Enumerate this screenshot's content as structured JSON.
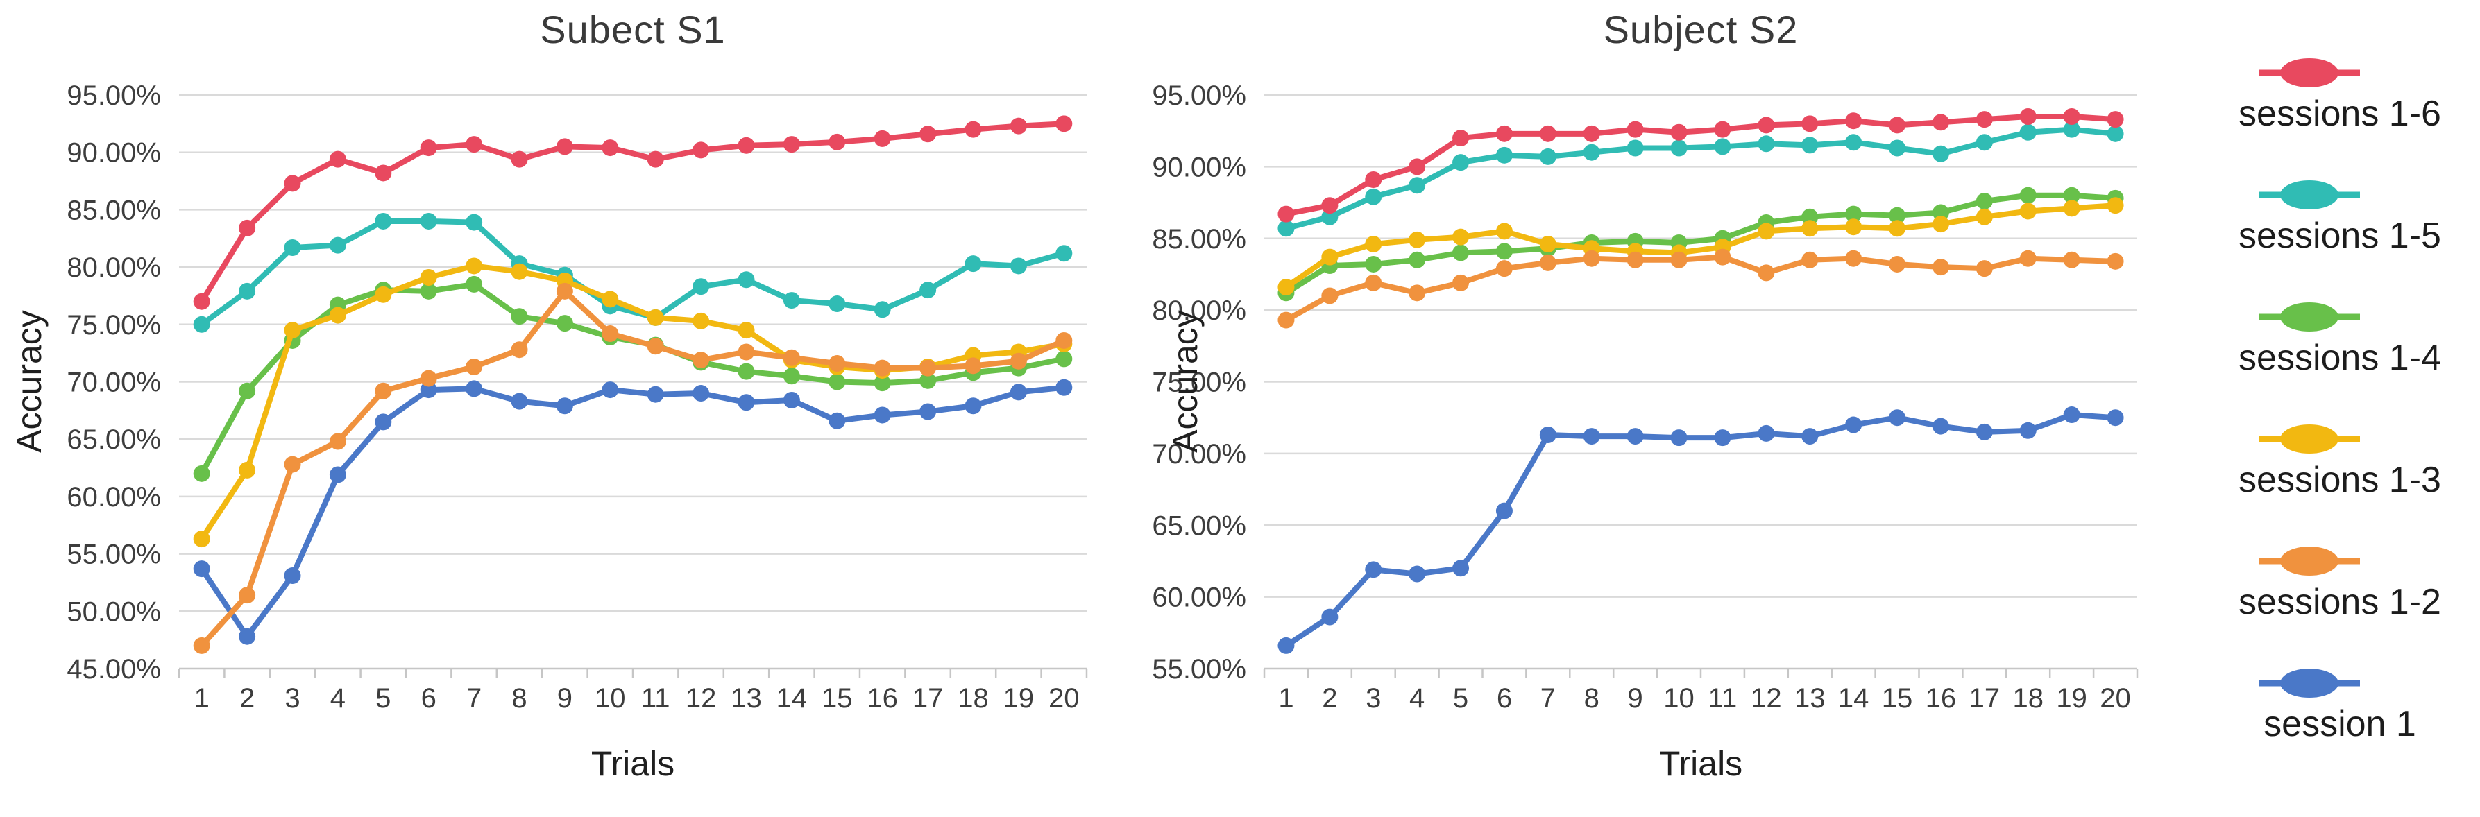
{
  "page": {
    "background": "#ffffff"
  },
  "chart_data": [
    {
      "id": "s1",
      "type": "line",
      "title": "Subect S1",
      "xlabel": "Trials",
      "ylabel": "Accuracy",
      "ylim": [
        45,
        95
      ],
      "ytick_step": 5,
      "ytick_suffix": "%",
      "grid": true,
      "x": [
        1,
        2,
        3,
        4,
        5,
        6,
        7,
        8,
        9,
        10,
        11,
        12,
        13,
        14,
        15,
        16,
        17,
        18,
        19,
        20
      ],
      "series": [
        {
          "name": "sessions 1-6",
          "color": "#e8495f",
          "values": [
            77.0,
            83.4,
            87.3,
            89.4,
            88.2,
            90.4,
            90.7,
            89.4,
            90.5,
            90.4,
            89.4,
            90.2,
            90.6,
            90.7,
            90.9,
            91.2,
            91.6,
            92.0,
            92.3,
            92.5
          ]
        },
        {
          "name": "sessions 1-5",
          "color": "#30bcb4",
          "values": [
            75.0,
            77.9,
            81.7,
            81.9,
            84.0,
            84.0,
            83.9,
            80.3,
            79.3,
            76.6,
            75.6,
            78.3,
            78.9,
            77.1,
            76.8,
            76.3,
            78.0,
            80.3,
            80.1,
            81.2
          ]
        },
        {
          "name": "sessions 1-4",
          "color": "#68c04a",
          "values": [
            62.0,
            69.2,
            73.6,
            76.7,
            78.0,
            77.9,
            78.5,
            75.7,
            75.1,
            73.9,
            73.2,
            71.7,
            70.9,
            70.5,
            70.0,
            69.9,
            70.1,
            70.8,
            71.2,
            72.0
          ]
        },
        {
          "name": "sessions 1-3",
          "color": "#f2b811",
          "values": [
            56.3,
            62.3,
            74.5,
            75.8,
            77.6,
            79.1,
            80.1,
            79.6,
            78.8,
            77.2,
            75.6,
            75.3,
            74.5,
            71.9,
            71.3,
            71.0,
            71.3,
            72.3,
            72.6,
            73.3
          ]
        },
        {
          "name": "sessions 1-2",
          "color": "#f0923e",
          "values": [
            47.0,
            51.4,
            62.8,
            64.8,
            69.2,
            70.3,
            71.3,
            72.8,
            77.9,
            74.2,
            73.1,
            71.9,
            72.6,
            72.1,
            71.6,
            71.2,
            71.2,
            71.4,
            71.8,
            73.6
          ]
        },
        {
          "name": "session 1",
          "color": "#4a78c8",
          "values": [
            53.7,
            47.8,
            53.1,
            61.9,
            66.5,
            69.3,
            69.4,
            68.3,
            67.9,
            69.3,
            68.9,
            69.0,
            68.2,
            68.4,
            66.6,
            67.1,
            67.4,
            67.9,
            69.1,
            69.5
          ]
        }
      ]
    },
    {
      "id": "s2",
      "type": "line",
      "title": "Subject S2",
      "xlabel": "Trials",
      "ylabel": "Accuracy",
      "ylim": [
        55,
        95
      ],
      "ytick_step": 5,
      "ytick_suffix": "%",
      "grid": true,
      "x": [
        1,
        2,
        3,
        4,
        5,
        6,
        7,
        8,
        9,
        10,
        11,
        12,
        13,
        14,
        15,
        16,
        17,
        18,
        19,
        20
      ],
      "series": [
        {
          "name": "sessions 1-6",
          "color": "#e8495f",
          "values": [
            86.7,
            87.3,
            89.1,
            90.0,
            92.0,
            92.3,
            92.3,
            92.3,
            92.6,
            92.4,
            92.6,
            92.9,
            93.0,
            93.2,
            92.9,
            93.1,
            93.3,
            93.5,
            93.5,
            93.3
          ]
        },
        {
          "name": "sessions 1-5",
          "color": "#30bcb4",
          "values": [
            85.7,
            86.5,
            87.9,
            88.7,
            90.3,
            90.8,
            90.7,
            91.0,
            91.3,
            91.3,
            91.4,
            91.6,
            91.5,
            91.7,
            91.3,
            90.9,
            91.7,
            92.4,
            92.6,
            92.3
          ]
        },
        {
          "name": "sessions 1-4",
          "color": "#68c04a",
          "values": [
            81.2,
            83.1,
            83.2,
            83.5,
            84.0,
            84.1,
            84.3,
            84.7,
            84.8,
            84.7,
            85.0,
            86.1,
            86.5,
            86.7,
            86.6,
            86.8,
            87.6,
            88.0,
            88.0,
            87.8
          ]
        },
        {
          "name": "sessions 1-3",
          "color": "#f2b811",
          "values": [
            81.6,
            83.7,
            84.6,
            84.9,
            85.1,
            85.5,
            84.6,
            84.3,
            84.1,
            84.0,
            84.4,
            85.5,
            85.7,
            85.8,
            85.7,
            86.0,
            86.5,
            86.9,
            87.1,
            87.3
          ]
        },
        {
          "name": "sessions 1-2",
          "color": "#f0923e",
          "values": [
            79.3,
            81.0,
            81.9,
            81.2,
            81.9,
            82.9,
            83.3,
            83.6,
            83.5,
            83.5,
            83.7,
            82.6,
            83.5,
            83.6,
            83.2,
            83.0,
            82.9,
            83.6,
            83.5,
            83.4
          ]
        },
        {
          "name": "session 1",
          "color": "#4a78c8",
          "values": [
            56.6,
            58.6,
            61.9,
            61.6,
            62.0,
            66.0,
            71.3,
            71.2,
            71.2,
            71.1,
            71.1,
            71.4,
            71.2,
            72.0,
            72.5,
            71.9,
            71.5,
            71.6,
            72.7,
            72.5
          ]
        }
      ]
    }
  ],
  "legend": {
    "position": "right",
    "items": [
      {
        "label": "sessions 1-6",
        "color": "#e8495f"
      },
      {
        "label": "sessions 1-5",
        "color": "#30bcb4"
      },
      {
        "label": "sessions 1-4",
        "color": "#68c04a"
      },
      {
        "label": "sessions 1-3",
        "color": "#f2b811"
      },
      {
        "label": "sessions 1-2",
        "color": "#f0923e"
      },
      {
        "label": "session 1",
        "color": "#4a78c8"
      }
    ]
  }
}
